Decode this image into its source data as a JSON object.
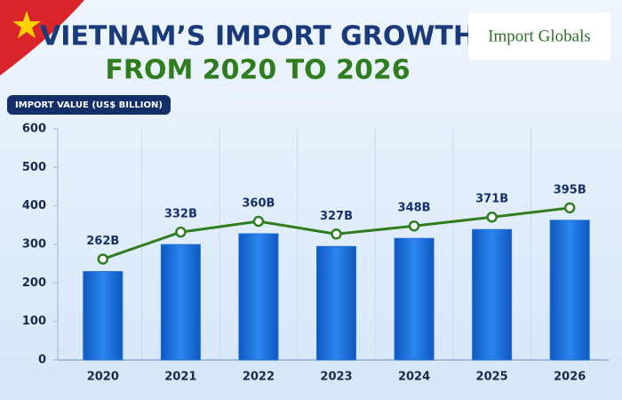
{
  "chart_data": {
    "type": "bar_line",
    "title": "VIETNAM’S IMPORT GROWTH",
    "subtitle": "FROM 2020 TO 2026",
    "logo": "Import Globals",
    "y_label": "IMPORT VALUE (US$ BILLION)",
    "categories": [
      "2020",
      "2021",
      "2022",
      "2023",
      "2024",
      "2025",
      "2026"
    ],
    "values": [
      262,
      332,
      360,
      327,
      348,
      371,
      395
    ],
    "value_labels": [
      "262B",
      "332B",
      "360B",
      "327B",
      "348B",
      "371B",
      "395B"
    ],
    "bar_color": "#1f6fd6",
    "line_color": "#2f7d1e",
    "ylim": [
      0,
      600
    ],
    "yticks": [
      0,
      100,
      200,
      300,
      400,
      500,
      600
    ],
    "grid": false
  }
}
